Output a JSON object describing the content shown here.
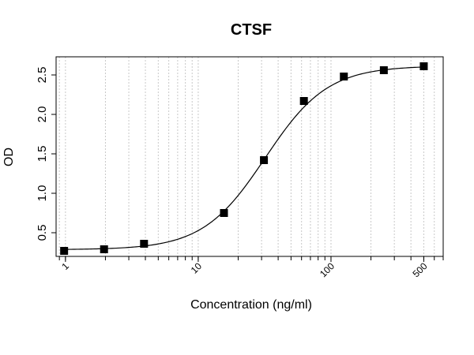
{
  "chart_data": {
    "type": "scatter",
    "title": "CTSF",
    "xlabel": "Concentration (ng/ml)",
    "ylabel": "OD",
    "x_scale": "log",
    "xlim": [
      0.85,
      700
    ],
    "ylim": [
      0.2,
      2.73
    ],
    "x_ticks": [
      1,
      10,
      100,
      500
    ],
    "x_tick_labels": [
      "1",
      "10",
      "100",
      "500"
    ],
    "y_ticks": [
      0.5,
      1.0,
      1.5,
      2.0,
      2.5
    ],
    "y_tick_labels": [
      "0.5",
      "1.0",
      "1.5",
      "2.0",
      "2.5"
    ],
    "grid": "vertical dotted at log minor ticks",
    "series": [
      {
        "marker": "square",
        "color": "#000000",
        "x": [
          0.977,
          1.953,
          3.906,
          15.625,
          31.25,
          62.5,
          125,
          250,
          500
        ],
        "y": [
          0.27,
          0.29,
          0.36,
          0.75,
          1.42,
          2.17,
          2.48,
          2.56,
          2.61
        ]
      }
    ],
    "fit_curve": {
      "type": "4PL",
      "bottom": 0.285,
      "top": 2.615,
      "ec50": 32,
      "hill": 1.85
    }
  }
}
